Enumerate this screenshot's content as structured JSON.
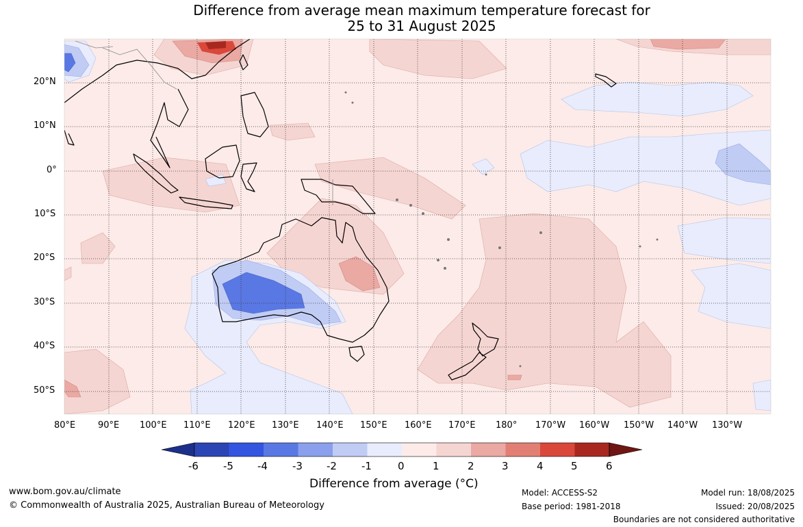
{
  "title": {
    "line1": "Difference from average mean maximum temperature forecast for",
    "line2": "25 to 31 August 2025"
  },
  "map": {
    "lat_labels": [
      "20°N",
      "10°N",
      "0°",
      "10°S",
      "20°S",
      "30°S",
      "40°S",
      "50°S"
    ],
    "lon_labels": [
      "80°E",
      "90°E",
      "100°E",
      "110°E",
      "120°E",
      "130°E",
      "140°E",
      "150°E",
      "160°E",
      "170°E",
      "180°",
      "170°W",
      "160°W",
      "150°W",
      "140°W",
      "130°W"
    ],
    "background_color": "#fcebe8"
  },
  "colorbar": {
    "ticks": [
      "-6",
      "-5",
      "-4",
      "-3",
      "-2",
      "-1",
      "0",
      "1",
      "2",
      "3",
      "4",
      "5",
      "6"
    ],
    "colors": [
      "#1c2f8a",
      "#2b45b5",
      "#3355e0",
      "#5a78e3",
      "#8aa0ec",
      "#c1ccf5",
      "#e8ecfc",
      "#fcebe8",
      "#f5d5d2",
      "#eaa9a3",
      "#e27f74",
      "#d9483b",
      "#a8281f",
      "#6f1612"
    ],
    "title": "Difference from average (°C)"
  },
  "footer": {
    "website": "www.bom.gov.au/climate",
    "copyright": "© Commonwealth of Australia 2025, Australian Bureau of Meteorology",
    "model": "Model: ACCESS-S2",
    "base_period": "Base period: 1981-2018",
    "model_run": "Model run: 18/08/2025",
    "issued": "Issued: 20/08/2025",
    "disclaimer": "Boundaries are not considered authoritative"
  }
}
